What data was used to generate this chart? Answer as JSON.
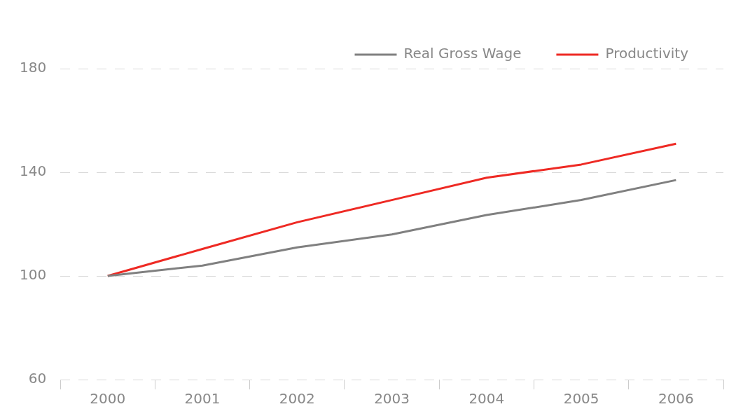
{
  "chart_data": {
    "type": "line",
    "categories": [
      "2000",
      "2001",
      "2002",
      "2003",
      "2004",
      "2005",
      "2006"
    ],
    "series": [
      {
        "name": "Real Gross Wage",
        "color": "#808080",
        "values": [
          100,
          104,
          111,
          116,
          123.5,
          129.3,
          137
        ]
      },
      {
        "name": "Productivity",
        "color": "#ee2a24",
        "values": [
          100,
          110.4,
          120.7,
          129.3,
          137.9,
          143,
          151
        ]
      }
    ],
    "ylim": [
      60,
      180
    ],
    "yticks": [
      60,
      100,
      140,
      180
    ],
    "grid": "y",
    "legend": "top right",
    "marker": "none",
    "line_style": "solid"
  }
}
